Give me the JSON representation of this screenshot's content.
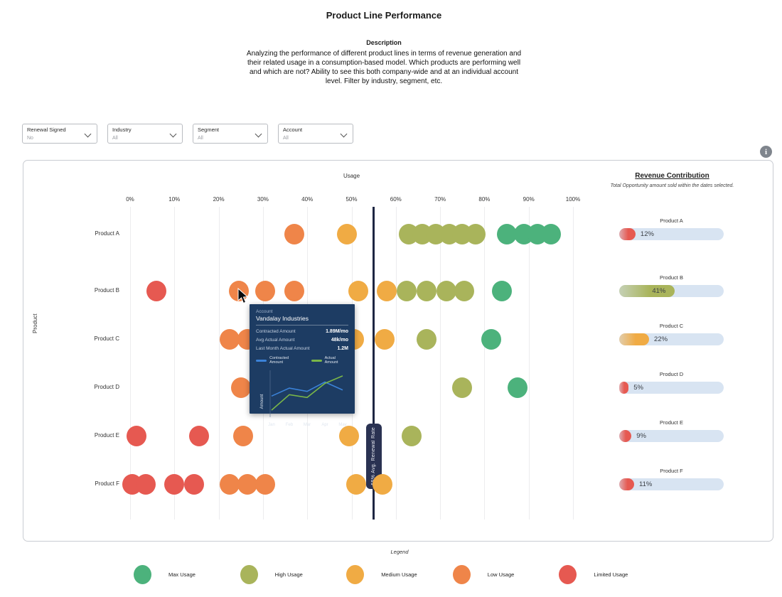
{
  "page": {
    "title": "Product Line Performance",
    "description_heading": "Description",
    "description": "Analyzing the performance of different product lines in terms of revenue generation and their related usage in a consumption-based model. Which products are performing well and which are not? Ability to see this both company-wide and at an individual account level. Filter by industry, segment, etc.",
    "info_icon_glyph": "i"
  },
  "filters": [
    {
      "label": "Renewal Signed",
      "value": "No"
    },
    {
      "label": "Industry",
      "value": "All"
    },
    {
      "label": "Segment",
      "value": "All"
    },
    {
      "label": "Account",
      "value": "All"
    }
  ],
  "chart_data": {
    "type": "scatter",
    "xlabel": "Usage",
    "ylabel": "Product",
    "xlim": [
      0,
      100
    ],
    "x_ticks": [
      "0%",
      "10%",
      "20%",
      "30%",
      "40%",
      "50%",
      "60%",
      "70%",
      "80%",
      "90%",
      "100%"
    ],
    "categories": [
      "Product A",
      "Product B",
      "Product C",
      "Product D",
      "Product E",
      "Product F"
    ],
    "avg_line": {
      "value": 55,
      "label": "55% Avg. Renewal Rate"
    },
    "levels": {
      "max": "#4cb27c",
      "high": "#a9b45b",
      "medium": "#f0ab44",
      "low": "#ef8549",
      "limited": "#e65951"
    },
    "points": [
      {
        "product": "Product A",
        "usage": 37,
        "level": "low"
      },
      {
        "product": "Product A",
        "usage": 49,
        "level": "medium"
      },
      {
        "product": "Product A",
        "usage": 63,
        "level": "high"
      },
      {
        "product": "Product A",
        "usage": 66,
        "level": "high"
      },
      {
        "product": "Product A",
        "usage": 69,
        "level": "high"
      },
      {
        "product": "Product A",
        "usage": 72,
        "level": "high"
      },
      {
        "product": "Product A",
        "usage": 75,
        "level": "high"
      },
      {
        "product": "Product A",
        "usage": 78,
        "level": "high"
      },
      {
        "product": "Product A",
        "usage": 85,
        "level": "max"
      },
      {
        "product": "Product A",
        "usage": 89,
        "level": "max"
      },
      {
        "product": "Product A",
        "usage": 92,
        "level": "max"
      },
      {
        "product": "Product A",
        "usage": 95,
        "level": "max"
      },
      {
        "product": "Product B",
        "usage": 6,
        "level": "limited"
      },
      {
        "product": "Product B",
        "usage": 24.5,
        "level": "low"
      },
      {
        "product": "Product B",
        "usage": 30.5,
        "level": "low"
      },
      {
        "product": "Product B",
        "usage": 37,
        "level": "low"
      },
      {
        "product": "Product B",
        "usage": 51.5,
        "level": "medium"
      },
      {
        "product": "Product B",
        "usage": 58,
        "level": "medium"
      },
      {
        "product": "Product B",
        "usage": 62.5,
        "level": "high"
      },
      {
        "product": "Product B",
        "usage": 67,
        "level": "high"
      },
      {
        "product": "Product B",
        "usage": 71.5,
        "level": "high"
      },
      {
        "product": "Product B",
        "usage": 75.5,
        "level": "high"
      },
      {
        "product": "Product B",
        "usage": 84,
        "level": "max"
      },
      {
        "product": "Product C",
        "usage": 22.5,
        "level": "low"
      },
      {
        "product": "Product C",
        "usage": 26.5,
        "level": "low"
      },
      {
        "product": "Product C",
        "usage": 50.5,
        "level": "medium"
      },
      {
        "product": "Product C",
        "usage": 57.5,
        "level": "medium"
      },
      {
        "product": "Product C",
        "usage": 67,
        "level": "high"
      },
      {
        "product": "Product C",
        "usage": 81.5,
        "level": "max"
      },
      {
        "product": "Product D",
        "usage": 25,
        "level": "low"
      },
      {
        "product": "Product D",
        "usage": 75,
        "level": "high"
      },
      {
        "product": "Product D",
        "usage": 87.5,
        "level": "max"
      },
      {
        "product": "Product E",
        "usage": 1.5,
        "level": "limited"
      },
      {
        "product": "Product E",
        "usage": 15.5,
        "level": "limited"
      },
      {
        "product": "Product E",
        "usage": 25.5,
        "level": "low"
      },
      {
        "product": "Product E",
        "usage": 49.5,
        "level": "medium"
      },
      {
        "product": "Product E",
        "usage": 63.5,
        "level": "high"
      },
      {
        "product": "Product F",
        "usage": 0.5,
        "level": "limited"
      },
      {
        "product": "Product F",
        "usage": 3.5,
        "level": "limited"
      },
      {
        "product": "Product F",
        "usage": 10,
        "level": "limited"
      },
      {
        "product": "Product F",
        "usage": 14.5,
        "level": "limited"
      },
      {
        "product": "Product F",
        "usage": 22.5,
        "level": "low"
      },
      {
        "product": "Product F",
        "usage": 26.5,
        "level": "low"
      },
      {
        "product": "Product F",
        "usage": 30.5,
        "level": "low"
      },
      {
        "product": "Product F",
        "usage": 51,
        "level": "medium"
      },
      {
        "product": "Product F",
        "usage": 57,
        "level": "medium"
      }
    ]
  },
  "tooltip": {
    "account_label": "Account",
    "account_name": "Vandalay Industries",
    "rows": [
      {
        "label": "Contracted Amount",
        "value": "1.89M/mo"
      },
      {
        "label": "Avg Actual Amount",
        "value": "48k/mo"
      },
      {
        "label": "Last Month Actual Amount",
        "value": "1.2M"
      }
    ],
    "legend": [
      {
        "name": "Contracted Amount",
        "color": "#3b82d8"
      },
      {
        "name": "Actual Amount",
        "color": "#7ab648"
      }
    ],
    "mini_chart": {
      "type": "line",
      "x": [
        "Jan",
        "Feb",
        "Mar",
        "Apr",
        "May"
      ],
      "ylabel": "Amount",
      "series": [
        {
          "name": "Contracted Amount",
          "color": "#3b82d8",
          "values": [
            45,
            62,
            55,
            75,
            58
          ]
        },
        {
          "name": "Actual Amount",
          "color": "#7ab648",
          "values": [
            15,
            48,
            42,
            72,
            88
          ]
        }
      ]
    }
  },
  "revenue_panel": {
    "title": "Revenue Contribution",
    "subtitle": "Total Opportunity amount sold within the dates selected.",
    "bars": [
      {
        "product": "Product A",
        "percent": 12,
        "level": "limited"
      },
      {
        "product": "Product B",
        "percent": 41,
        "level": "high"
      },
      {
        "product": "Product C",
        "percent": 22,
        "level": "medium"
      },
      {
        "product": "Product D",
        "percent": 5,
        "level": "limited"
      },
      {
        "product": "Product E",
        "percent": 9,
        "level": "limited"
      },
      {
        "product": "Product F",
        "percent": 11,
        "level": "limited"
      }
    ]
  },
  "legend": {
    "title": "Legend",
    "items": [
      {
        "label": "Max Usage",
        "level": "max"
      },
      {
        "label": "High Usage",
        "level": "high"
      },
      {
        "label": "Medium Usage",
        "level": "medium"
      },
      {
        "label": "Low Usage",
        "level": "low"
      },
      {
        "label": "Limited Usage",
        "level": "limited"
      }
    ]
  }
}
